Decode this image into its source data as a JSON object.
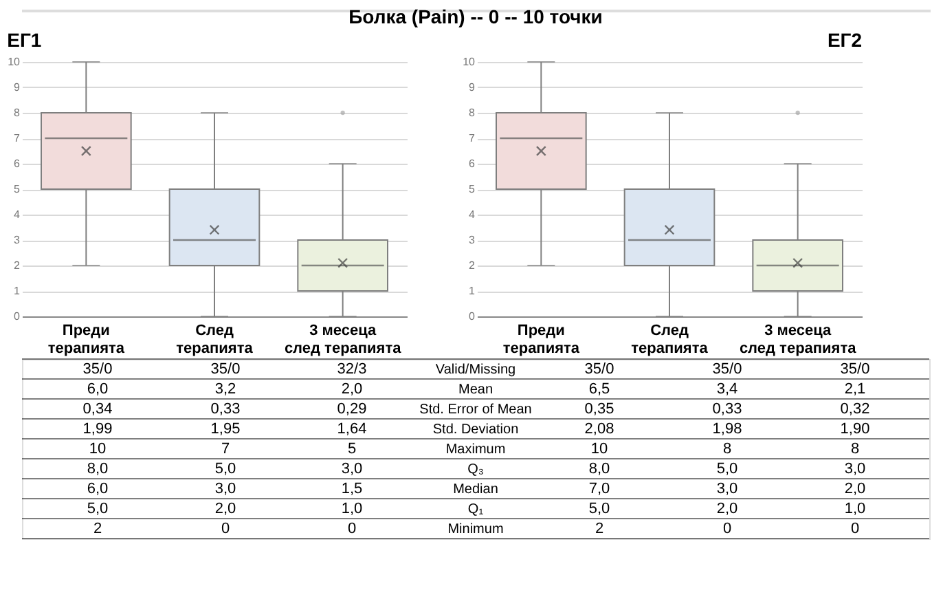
{
  "chart_data": [
    {
      "type": "box",
      "title": "ЕГ1",
      "categories": [
        "Преди терапията",
        "След терапията",
        "3 месеца след терапията"
      ],
      "colors": [
        "#f2dcdb",
        "#dce6f2",
        "#ebf1de"
      ],
      "boxes": [
        {
          "low": 2,
          "q1": 5,
          "median": 7,
          "q3": 8,
          "high": 10,
          "mean": 6.5
        },
        {
          "low": 0,
          "q1": 2,
          "median": 3,
          "q3": 5,
          "high": 8,
          "mean": 3.4
        },
        {
          "low": 0,
          "q1": 1,
          "median": 2,
          "q3": 3,
          "high": 6,
          "mean": 2.1,
          "outliers": [
            8
          ]
        }
      ],
      "ylim": [
        0,
        10
      ],
      "yticks": [
        0,
        1,
        2,
        3,
        4,
        5,
        6,
        7,
        8,
        9,
        10
      ],
      "grid": "y"
    },
    {
      "type": "box",
      "title": "ЕГ2",
      "categories": [
        "Преди терапията",
        "След терапията",
        "3 месеца след терапията"
      ],
      "colors": [
        "#f2dcdb",
        "#dce6f2",
        "#ebf1de"
      ],
      "boxes": [
        {
          "low": 2,
          "q1": 5,
          "median": 7,
          "q3": 8,
          "high": 10,
          "mean": 6.5
        },
        {
          "low": 0,
          "q1": 2,
          "median": 3,
          "q3": 5,
          "high": 8,
          "mean": 3.4
        },
        {
          "low": 0,
          "q1": 1,
          "median": 2,
          "q3": 3,
          "high": 6,
          "mean": 2.1,
          "outliers": [
            8
          ]
        }
      ],
      "ylim": [
        0,
        10
      ],
      "yticks": [
        0,
        1,
        2,
        3,
        4,
        5,
        6,
        7,
        8,
        9,
        10
      ],
      "grid": "y"
    },
    {
      "type": "other",
      "title": "Болка (Pain)  --  0 -- 10 точки",
      "annotations": [
        "35/0",
        "35/0",
        "32/3",
        "Valid/Missing",
        "35/0",
        "35/0",
        "35/0",
        "6,0",
        "3,2",
        "2,0",
        "Mean",
        "6,5",
        "3,4",
        "2,1",
        "0,34",
        "0,33",
        "0,29",
        "Std. Error of Mean",
        "0,35",
        "0,33",
        "0,32",
        "1,99",
        "1,95",
        "1,64",
        "Std. Deviation",
        "2,08",
        "1,98",
        "1,90",
        "10",
        "7",
        "5",
        "Maximum",
        "10",
        "8",
        "8",
        "8,0",
        "5,0",
        "3,0",
        "Q₃",
        "8,0",
        "5,0",
        "3,0",
        "6,0",
        "3,0",
        "1,5",
        "Median",
        "7,0",
        "3,0",
        "2,0",
        "5,0",
        "2,0",
        "1,0",
        "Q₁",
        "5,0",
        "2,0",
        "1,0",
        "2",
        "0",
        "0",
        "Minimum",
        "2",
        "0",
        "0"
      ]
    }
  ]
}
